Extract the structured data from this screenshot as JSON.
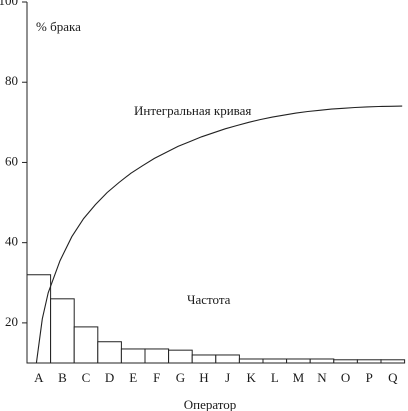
{
  "chart_data": {
    "type": "bar",
    "title": "",
    "ylabel": "% брака",
    "xlabel": "Оператор",
    "ylim": [
      10,
      100
    ],
    "yticks": [
      20,
      40,
      60,
      80,
      100
    ],
    "grid": false,
    "legend": "none",
    "categories": [
      "A",
      "B",
      "C",
      "D",
      "E",
      "F",
      "G",
      "H",
      "J",
      "K",
      "L",
      "M",
      "N",
      "O",
      "P",
      "Q"
    ],
    "series": [
      {
        "name": "Частота",
        "type": "bar",
        "values": [
          32,
          26,
          19,
          15.3,
          13.5,
          13.5,
          13.2,
          12,
          12,
          11,
          11,
          11,
          11,
          10.8,
          10.8,
          10.8
        ]
      },
      {
        "name": "Интегральная кривая",
        "type": "line",
        "points": [
          [
            0.0,
            10
          ],
          [
            0.25,
            21
          ],
          [
            0.5,
            27.5
          ],
          [
            1.0,
            35.5
          ],
          [
            1.5,
            41.5
          ],
          [
            2.0,
            46
          ],
          [
            2.5,
            49.5
          ],
          [
            3.0,
            52.5
          ],
          [
            3.5,
            55
          ],
          [
            4.0,
            57.3
          ],
          [
            4.5,
            59.2
          ],
          [
            5.0,
            61
          ],
          [
            5.5,
            62.5
          ],
          [
            6.0,
            64
          ],
          [
            6.5,
            65.2
          ],
          [
            7.0,
            66.4
          ],
          [
            7.5,
            67.4
          ],
          [
            8.0,
            68.4
          ],
          [
            8.5,
            69.2
          ],
          [
            9.0,
            70
          ],
          [
            9.5,
            70.7
          ],
          [
            10.0,
            71.3
          ],
          [
            10.5,
            71.8
          ],
          [
            11.0,
            72.3
          ],
          [
            11.5,
            72.7
          ],
          [
            12.0,
            73.0
          ],
          [
            12.5,
            73.3
          ],
          [
            13.0,
            73.5
          ],
          [
            13.5,
            73.7
          ],
          [
            14.0,
            73.85
          ],
          [
            14.5,
            73.95
          ],
          [
            15.0,
            74.0
          ],
          [
            15.5,
            74.05
          ]
        ]
      }
    ],
    "annotations": [
      "Интегральная кривая",
      "Частота"
    ]
  }
}
